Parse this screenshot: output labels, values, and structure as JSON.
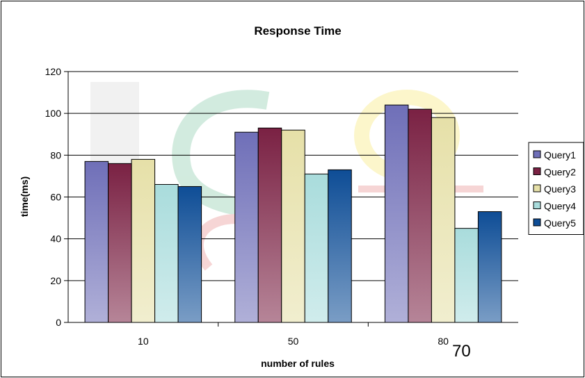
{
  "chart_data": {
    "type": "bar",
    "title": "Response Time",
    "xlabel": "number of rules",
    "ylabel": "time(ms)",
    "categories": [
      "10",
      "50",
      "80"
    ],
    "ylim": [
      0,
      120
    ],
    "yticks": [
      "0",
      "20",
      "40",
      "60",
      "80",
      "100",
      "120"
    ],
    "grid": "horizontal",
    "legend_position": "right",
    "series": [
      {
        "name": "Query1",
        "values": [
          77,
          91,
          104
        ],
        "color": "#6f6fb8"
      },
      {
        "name": "Query2",
        "values": [
          76,
          93,
          102
        ],
        "color": "#7a2143"
      },
      {
        "name": "Query3",
        "values": [
          78,
          92,
          98
        ],
        "color": "#e6e0a8"
      },
      {
        "name": "Query4",
        "values": [
          66,
          71,
          45
        ],
        "color": "#a9dcdc"
      },
      {
        "name": "Query5",
        "values": [
          65,
          73,
          53
        ],
        "color": "#0e4d96"
      }
    ]
  },
  "page_number": "70"
}
